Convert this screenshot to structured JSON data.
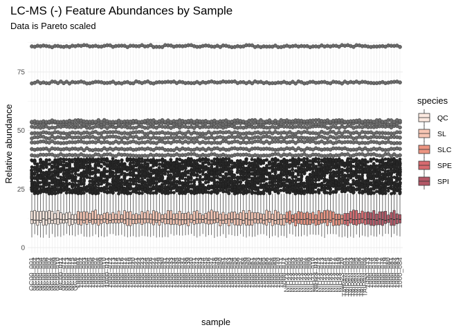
{
  "chart_data": {
    "type": "box",
    "title": "LC-MS (-) Feature Abundances by Sample",
    "subtitle": "Data is Pareto scaled",
    "xlabel": "sample",
    "ylabel": "Relative abundance",
    "ylim": [
      0,
      88
    ],
    "y_ticks": [
      0,
      25,
      50,
      75
    ],
    "n_samples": 128,
    "legend": {
      "title": "species",
      "placement": "right",
      "entries": [
        {
          "name": "QC",
          "color": "#fbe9e0"
        },
        {
          "name": "SL",
          "color": "#f7c6b4"
        },
        {
          "name": "SLC",
          "color": "#eb9481"
        },
        {
          "name": "SPE",
          "color": "#d66a6f"
        },
        {
          "name": "SPI",
          "color": "#b45867"
        }
      ]
    },
    "groups": [
      {
        "species": "QC",
        "count": 16
      },
      {
        "species": "SL",
        "count": 72
      },
      {
        "species": "SLC",
        "count": 20
      },
      {
        "species": "SPE",
        "count": 8
      },
      {
        "species": "SPI",
        "count": 12
      }
    ],
    "box_summary": {
      "lower_whisker": 5,
      "q1": 10,
      "median": 12,
      "q3": 15,
      "upper_whisker": 23
    },
    "outlier_bands": [
      {
        "y_min": 23,
        "y_max": 38,
        "dense": true
      },
      {
        "y": 39.5
      },
      {
        "y": 42
      },
      {
        "y": 45
      },
      {
        "y": 47
      },
      {
        "y": 49
      },
      {
        "y": 51.5
      },
      {
        "y": 53
      },
      {
        "y": 54
      },
      {
        "y": 70.5
      },
      {
        "y": 86
      }
    ],
    "x_tick_labels": [
      "QC00_001",
      "QC00_002",
      "QC00_003",
      "QC00_004",
      "QC00_005",
      "QC00_006",
      "QC00_007",
      "QC00_008",
      "QC00_009",
      "QC00_010",
      "QC00_011",
      "QC00_012",
      "QC00_013",
      "QC00_014",
      "QC00_015",
      "QC00_016",
      "1000_001",
      "1000_002",
      "1000_003",
      "1000_004",
      "1000_005",
      "1000_006",
      "1000_007",
      "1000_008",
      "1000_009",
      "1000_010",
      "1000_011",
      "1000_012",
      "1000_013",
      "1000_014",
      "1000_015",
      "1000_016",
      "1000_017",
      "1000_018",
      "1000_019",
      "1000_020",
      "1000_021",
      "1000_022",
      "1000_023",
      "1000_024",
      "1000_025",
      "1000_026",
      "1000_027",
      "1000_028",
      "1000_029",
      "1000_030",
      "1000_031",
      "1000_032",
      "1000_033",
      "1000_034",
      "1000_035",
      "1000_036",
      "1000_037",
      "1000_038",
      "1000_039",
      "1000_040",
      "1000_041",
      "1000_042",
      "1000_043",
      "1000_044",
      "1000_045",
      "1000_046",
      "1000_047",
      "1000_048",
      "1000_049",
      "1000_050",
      "1000_051",
      "1000_052",
      "1000_053",
      "1000_054",
      "1000_055",
      "1000_056",
      "1000_057",
      "1000_058",
      "1000_059",
      "1000_060",
      "1000_061",
      "1000_062",
      "1000_063",
      "1000_064",
      "1000_065",
      "1000_066",
      "1000_067",
      "1000_068",
      "1000_069",
      "1000_070",
      "1000_071",
      "1000_072",
      "NIH23_001",
      "NIH23_002",
      "NIH23_003",
      "NIH23_004",
      "NIH23_005",
      "NIH23_006",
      "NIH23_007",
      "NIH23_008",
      "NIH23_009",
      "NIH23_010",
      "NIH23_011",
      "NIH23_012",
      "NIH23_013",
      "NIH23_014",
      "NIH23_015",
      "NIH23_016",
      "NIH23_017",
      "NIH23_018",
      "NIH23_019",
      "NIH23_020",
      "TAIPAN_001",
      "TAIPAN_002",
      "TAIPAN_003",
      "TAIPAN_004",
      "TAIPAN_005",
      "TAIPAN_006",
      "TAIPAN_007",
      "TAIPAN_008",
      "1000_073",
      "1000_074",
      "1000_075",
      "1000_076",
      "1000_077",
      "1000_078",
      "1000_079",
      "1000_080",
      "1000_081",
      "1000_082",
      "1000_083",
      "1000_084"
    ]
  }
}
